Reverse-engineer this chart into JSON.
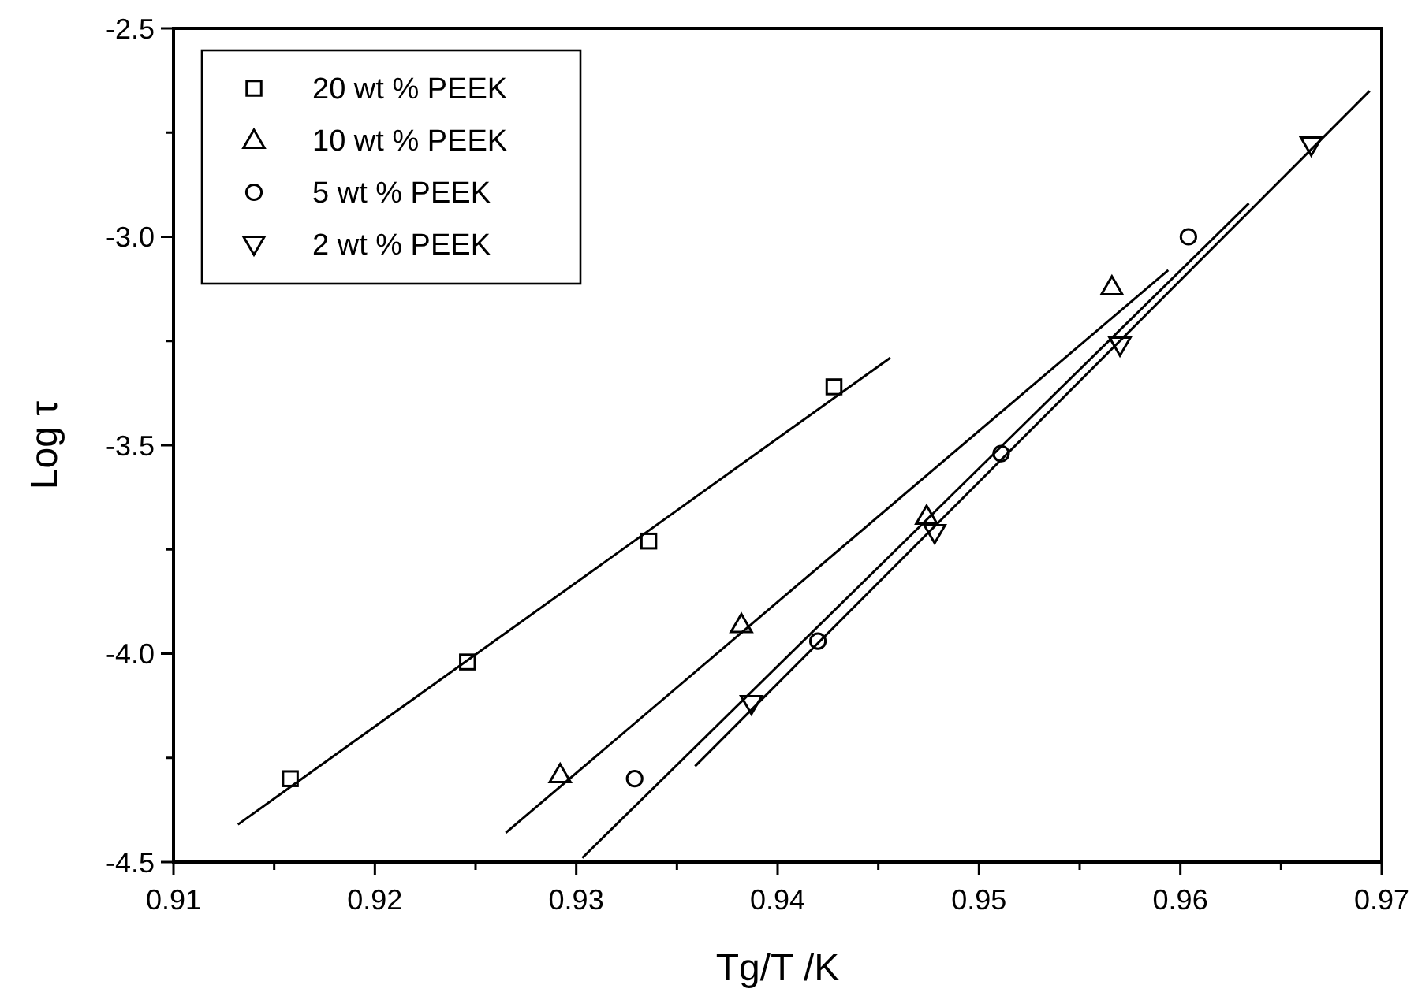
{
  "chart_data": {
    "type": "scatter",
    "xlabel": "Tg/T /K",
    "ylabel": "Log τ",
    "xlim": [
      0.91,
      0.97
    ],
    "ylim": [
      -4.5,
      -2.5
    ],
    "xticks": [
      0.91,
      {
        "value": 0.915,
        "label": null
      },
      0.92,
      {
        "value": 0.925,
        "label": null
      },
      0.93,
      {
        "value": 0.935,
        "label": null
      },
      0.94,
      {
        "value": 0.945,
        "label": null
      },
      0.95,
      {
        "value": 0.955,
        "label": null
      },
      0.96,
      {
        "value": 0.965,
        "label": null
      },
      0.97
    ],
    "yticks": [
      -4.5,
      {
        "value": -4.25,
        "label": null
      },
      {
        "value": -4,
        "label": "-4.0"
      },
      {
        "value": -3.75,
        "label": null
      },
      -3.5,
      {
        "value": -3.25,
        "label": null
      },
      {
        "value": -3,
        "label": "-3.0"
      },
      {
        "value": -2.75,
        "label": null
      },
      -2.5
    ],
    "legend": "top left",
    "grid": false,
    "series": [
      {
        "name": "20 wt % PEEK",
        "color": "#000000",
        "marker": "square",
        "x": [
          0.9158,
          0.9246,
          0.9336,
          0.9428
        ],
        "values": [
          -4.3,
          -4.02,
          -3.73,
          -3.36
        ]
      },
      {
        "name": "10 wt % PEEK",
        "color": "#000000",
        "marker": "triangle",
        "x": [
          0.9292,
          0.9382,
          0.9474,
          0.9566
        ],
        "values": [
          -4.29,
          -3.93,
          -3.67,
          -3.12
        ]
      },
      {
        "name": "5 wt % PEEK",
        "color": "#000000",
        "marker": "circle",
        "x": [
          0.9329,
          0.942,
          0.9511,
          0.9604
        ],
        "values": [
          -4.3,
          -3.97,
          -3.52,
          -3.0
        ]
      },
      {
        "name": "2 wt % PEEK",
        "color": "#000000",
        "marker": "triangle-down",
        "x": [
          0.9387,
          0.9478,
          0.957,
          0.9665
        ],
        "values": [
          -4.12,
          -3.71,
          -3.26,
          -2.78
        ]
      },
      {
        "type": "line",
        "color": "#000000",
        "marker": "none",
        "x": [
          0.9132,
          0.9456
        ],
        "values": [
          -4.41,
          -3.29
        ]
      },
      {
        "type": "line",
        "color": "#000000",
        "marker": "none",
        "x": [
          0.9265,
          0.9594
        ],
        "values": [
          -4.43,
          -3.08
        ]
      },
      {
        "type": "line",
        "color": "#000000",
        "marker": "none",
        "x": [
          0.9303,
          0.9634
        ],
        "values": [
          -4.49,
          -2.92
        ]
      },
      {
        "type": "line",
        "color": "#000000",
        "marker": "none",
        "x": [
          0.9359,
          0.9694
        ],
        "values": [
          -4.27,
          -2.65
        ]
      }
    ]
  }
}
